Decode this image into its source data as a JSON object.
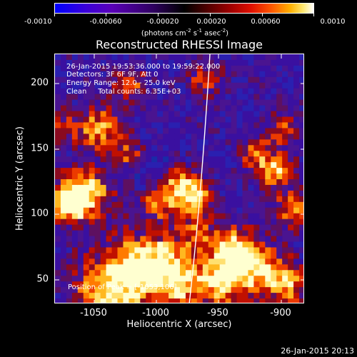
{
  "colorbar": {
    "tick_labels": [
      "-0.0010",
      "-0.00060",
      "-0.00020",
      "0.00020",
      "0.00060",
      "0.0010"
    ],
    "units_html": "(photons cm<sup>-2</sup> s<sup>-1</sup> asec<sup>-2</sup>)"
  },
  "plot": {
    "title": "Reconstructed RHESSI Image",
    "info": {
      "time_range": "26-Jan-2015 19:53:36.000 to 19:59:22.000",
      "detectors": "Detectors: 3F 6F 9F, Att 0",
      "energy": "Energy Range: 12.0 - 25.0 keV",
      "clean": "Clean     Total counts: 6.35E+03"
    },
    "peak_position": "Position of Peak = [-1053,106]",
    "x_ticks": [
      "-1050",
      "-1000",
      "-950",
      "-900"
    ],
    "y_ticks": [
      "200",
      "150",
      "100",
      "50"
    ],
    "x_label": "Heliocentric X (arcsec)",
    "y_label": "Heliocentric Y (arcsec)"
  },
  "footer": {
    "timestamp": "26-Jan-2015 20:13"
  },
  "chart_data": {
    "type": "heatmap",
    "title": "Reconstructed RHESSI Image",
    "xlabel": "Heliocentric X (arcsec)",
    "ylabel": "Heliocentric Y (arcsec)",
    "colorbar_range": [
      -0.001,
      0.001
    ],
    "peak": [
      -1053,
      106
    ]
  }
}
